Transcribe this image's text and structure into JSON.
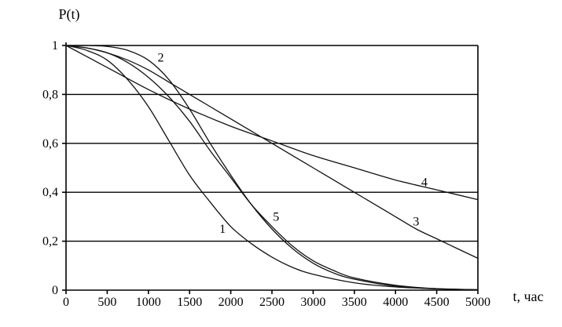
{
  "chart_data": {
    "type": "line",
    "ylabel": "P(t)",
    "xlabel": "t, час",
    "xlim": [
      0,
      5000
    ],
    "ylim": [
      0,
      1
    ],
    "grid": "horizontal",
    "x_ticks": [
      0,
      500,
      1000,
      1500,
      2000,
      2500,
      3000,
      3500,
      4000,
      4500,
      5000
    ],
    "x_tick_labels": [
      "0",
      "500",
      "1000",
      "1500",
      "2000",
      "2500",
      "3000",
      "3500",
      "4000",
      "4500",
      "5000"
    ],
    "y_ticks": [
      0,
      0.2,
      0.4,
      0.6,
      0.8,
      1
    ],
    "y_tick_labels": [
      "0",
      "0,2",
      "0,4",
      "0,6",
      "0,8",
      "1"
    ],
    "series": [
      {
        "name": "1",
        "x": [
          0,
          250,
          500,
          750,
          1000,
          1250,
          1500,
          1750,
          2000,
          2250,
          2500,
          2750,
          3000,
          3500,
          4000,
          4500,
          5000
        ],
        "y": [
          1.0,
          0.98,
          0.94,
          0.86,
          0.75,
          0.61,
          0.47,
          0.36,
          0.26,
          0.19,
          0.135,
          0.093,
          0.065,
          0.03,
          0.013,
          0.006,
          0.002
        ],
        "label_at": [
          1900,
          0.25
        ]
      },
      {
        "name": "2",
        "x": [
          0,
          250,
          500,
          750,
          1000,
          1250,
          1500,
          1750,
          2000,
          2250,
          2500,
          2750,
          3000,
          3250,
          3500,
          4000,
          4500,
          5000
        ],
        "y": [
          1.0,
          1.0,
          0.996,
          0.98,
          0.94,
          0.86,
          0.74,
          0.6,
          0.47,
          0.35,
          0.25,
          0.17,
          0.11,
          0.07,
          0.045,
          0.016,
          0.005,
          0.001
        ],
        "label_at": [
          1150,
          0.95
        ]
      },
      {
        "name": "3",
        "x": [
          0,
          250,
          500,
          750,
          1000,
          1250,
          1500,
          1750,
          2000,
          2250,
          2500,
          2750,
          3000,
          3250,
          3500,
          3750,
          4000,
          4250,
          4500,
          4750,
          5000
        ],
        "y": [
          1.0,
          0.99,
          0.97,
          0.94,
          0.9,
          0.85,
          0.8,
          0.75,
          0.7,
          0.65,
          0.6,
          0.55,
          0.5,
          0.45,
          0.4,
          0.35,
          0.3,
          0.25,
          0.21,
          0.17,
          0.13
        ],
        "label_at": [
          4250,
          0.28
        ]
      },
      {
        "name": "4",
        "x": [
          0,
          500,
          1000,
          1500,
          2000,
          2500,
          3000,
          3500,
          4000,
          4500,
          5000
        ],
        "y": [
          1.0,
          0.91,
          0.82,
          0.74,
          0.67,
          0.61,
          0.55,
          0.5,
          0.45,
          0.41,
          0.37
        ],
        "label_at": [
          4350,
          0.44
        ]
      },
      {
        "name": "5",
        "x": [
          0,
          250,
          500,
          750,
          1000,
          1250,
          1500,
          1750,
          2000,
          2250,
          2500,
          2750,
          3000,
          3250,
          3500,
          4000,
          4500,
          5000
        ],
        "y": [
          1.0,
          0.99,
          0.97,
          0.93,
          0.87,
          0.79,
          0.69,
          0.57,
          0.46,
          0.35,
          0.26,
          0.18,
          0.12,
          0.08,
          0.05,
          0.02,
          0.006,
          0.002
        ],
        "label_at": [
          2550,
          0.3
        ]
      }
    ]
  }
}
